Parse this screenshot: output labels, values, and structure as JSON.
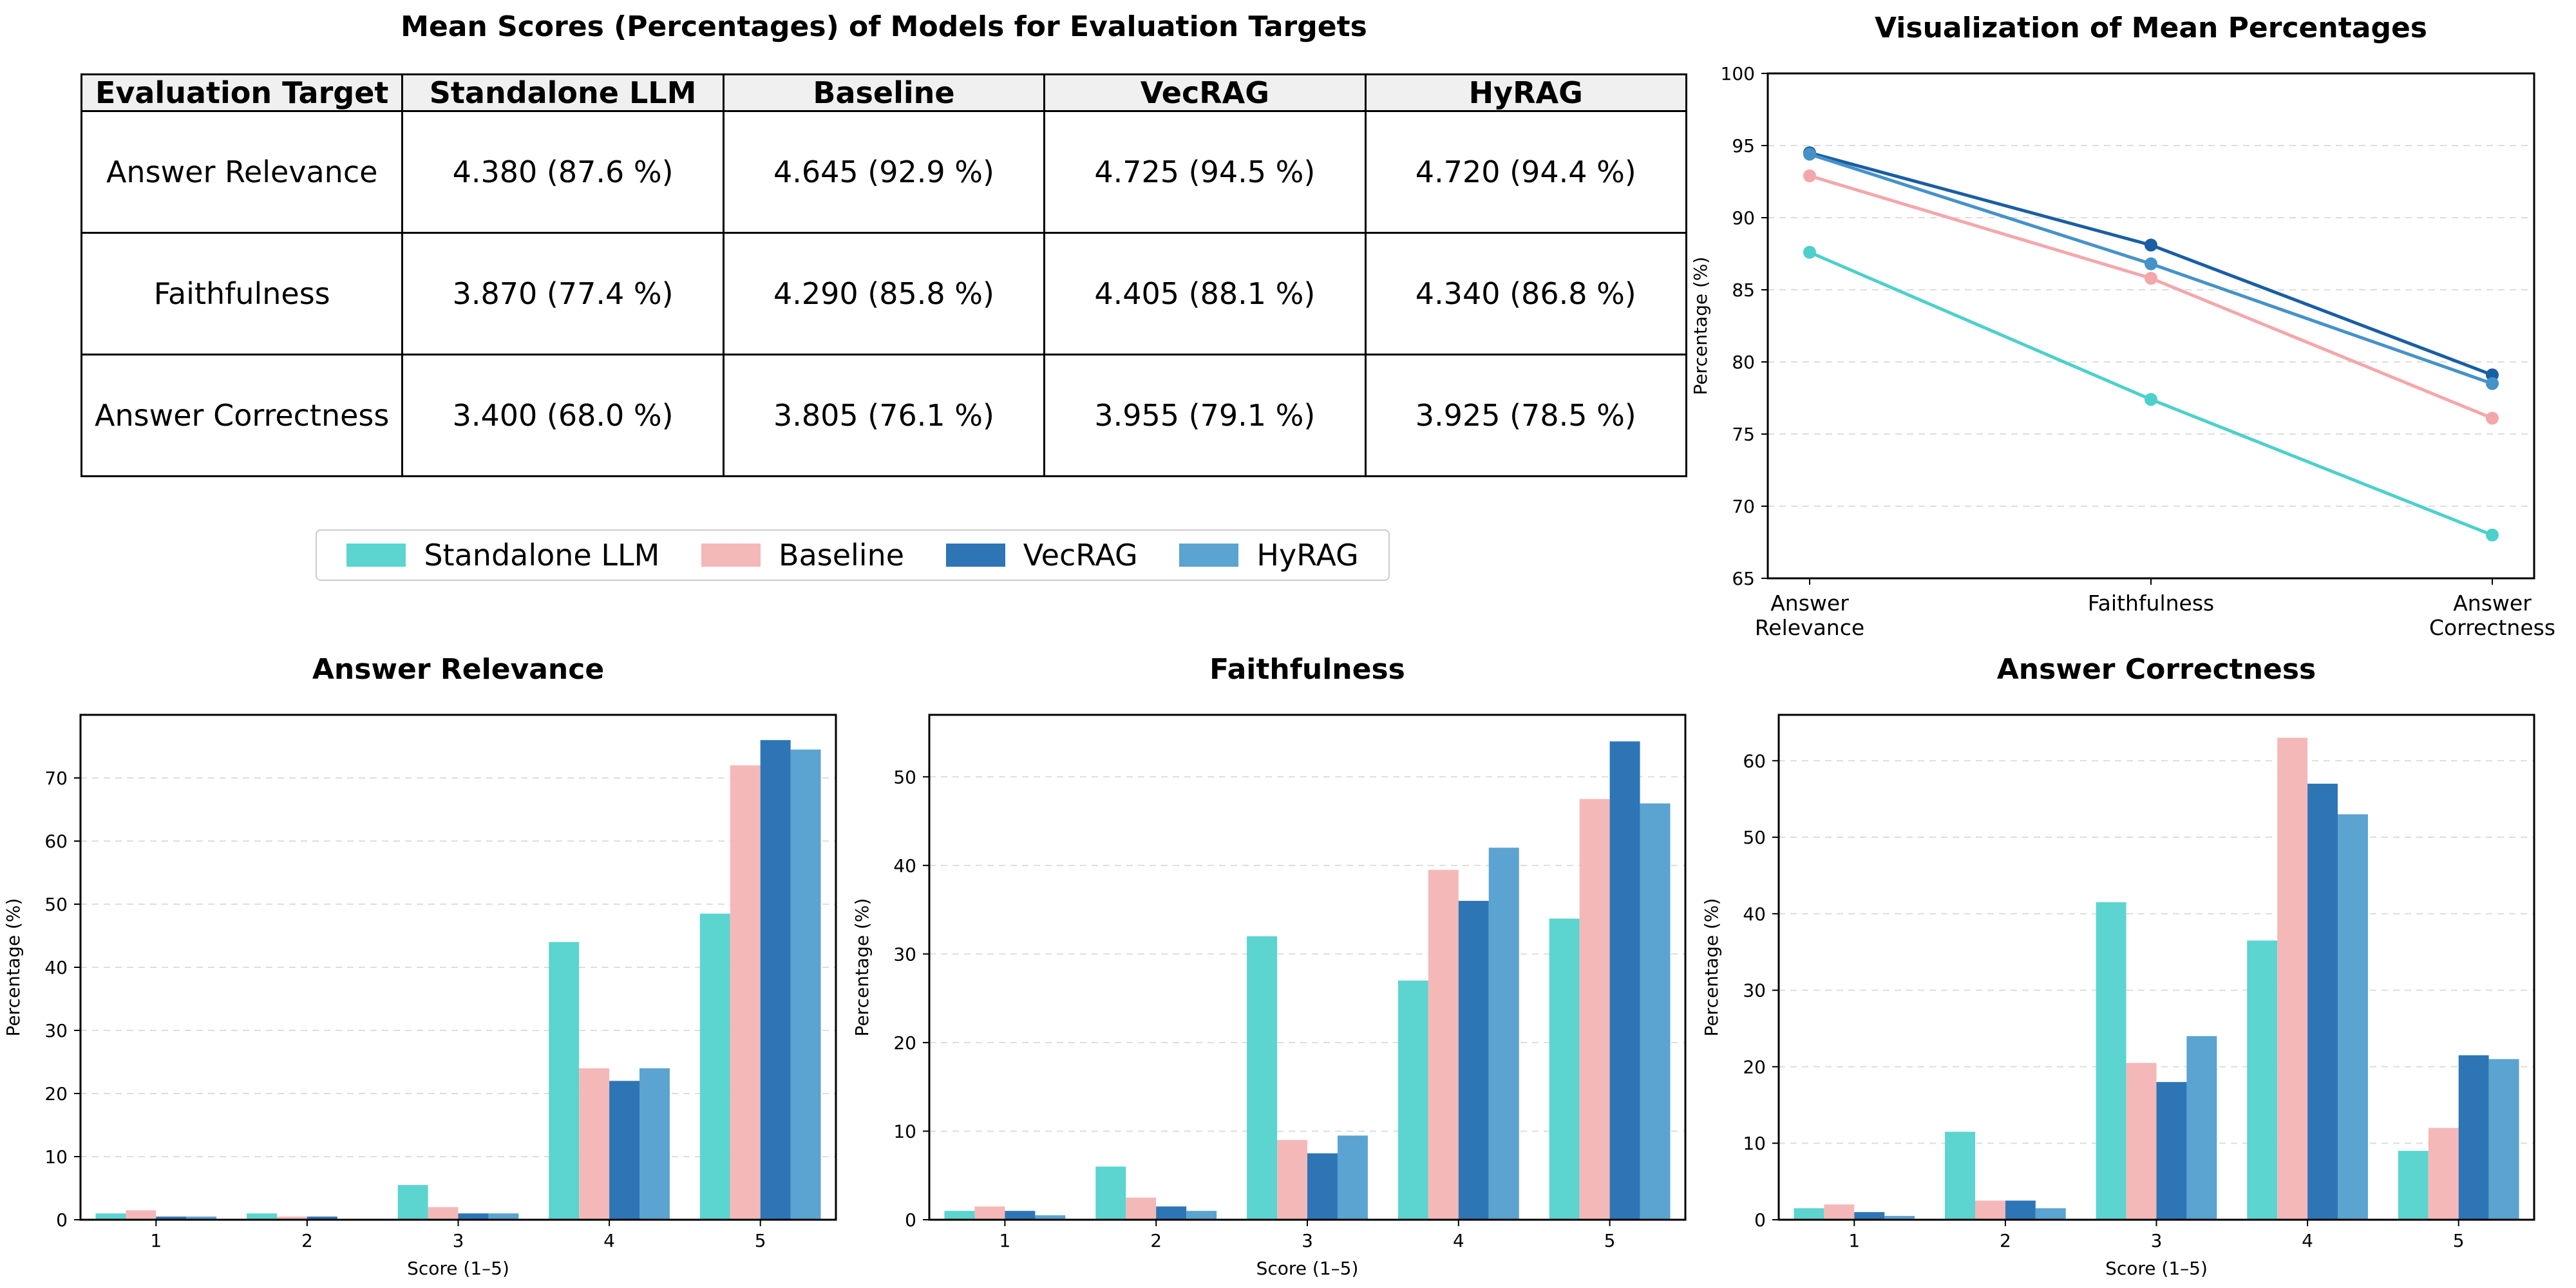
{
  "table": {
    "title": "Mean Scores (Percentages) of Models for Evaluation Targets",
    "headers": [
      "Evaluation Target",
      "Standalone LLM",
      "Baseline",
      "VecRAG",
      "HyRAG"
    ],
    "rows": [
      [
        "Answer Relevance",
        "4.380 (87.6 %)",
        "4.645 (92.9 %)",
        "4.725 (94.5 %)",
        "4.720 (94.4 %)"
      ],
      [
        "Faithfulness",
        "3.870 (77.4 %)",
        "4.290 (85.8 %)",
        "4.405 (88.1 %)",
        "4.340 (86.8 %)"
      ],
      [
        "Answer Correctness",
        "3.400 (68.0 %)",
        "3.805 (76.1 %)",
        "3.955 (79.1 %)",
        "3.925 (78.5 %)"
      ]
    ]
  },
  "legend": [
    {
      "label": "Standalone LLM",
      "color": "#5cd4d0"
    },
    {
      "label": "Baseline",
      "color": "#f5b8b8"
    },
    {
      "label": "VecRAG",
      "color": "#2e75b6"
    },
    {
      "label": "HyRAG",
      "color": "#5ba3d0"
    }
  ],
  "chart_data": [
    {
      "type": "line",
      "title": "Visualization of Mean Percentages",
      "ylabel": "Percentage (%)",
      "xlabel": "",
      "categories": [
        "Answer\nRelevance",
        "Faithfulness",
        "Answer\nCorrectness"
      ],
      "ylim": [
        65,
        100
      ],
      "yticks": [
        65,
        70,
        75,
        80,
        85,
        90,
        95,
        100
      ],
      "grid": "y",
      "series": [
        {
          "name": "Standalone LLM",
          "color": "#4dd0cb",
          "values": [
            87.6,
            77.4,
            68.0
          ]
        },
        {
          "name": "Baseline",
          "color": "#f4a7ab",
          "values": [
            92.9,
            85.8,
            76.1
          ]
        },
        {
          "name": "VecRAG",
          "color": "#1a5ea3",
          "values": [
            94.5,
            88.1,
            79.1
          ]
        },
        {
          "name": "HyRAG",
          "color": "#4592c9",
          "values": [
            94.4,
            86.8,
            78.5
          ]
        }
      ]
    },
    {
      "type": "bar",
      "title": "Answer Relevance",
      "xlabel": "Score (1–5)",
      "ylabel": "Percentage (%)",
      "categories": [
        "1",
        "2",
        "3",
        "4",
        "5"
      ],
      "ylim": [
        0,
        80
      ],
      "yticks": [
        0,
        10,
        20,
        30,
        40,
        50,
        60,
        70
      ],
      "grid": "y",
      "series": [
        {
          "name": "Standalone LLM",
          "color": "#5cd4d0",
          "values": [
            1.0,
            1.0,
            5.5,
            44.0,
            48.5
          ]
        },
        {
          "name": "Baseline",
          "color": "#f5b8b8",
          "values": [
            1.5,
            0.5,
            2.0,
            24.0,
            72.0
          ]
        },
        {
          "name": "VecRAG",
          "color": "#2e75b6",
          "values": [
            0.5,
            0.5,
            1.0,
            22.0,
            76.0
          ]
        },
        {
          "name": "HyRAG",
          "color": "#5ba3d0",
          "values": [
            0.5,
            0.0,
            1.0,
            24.0,
            74.5
          ]
        }
      ]
    },
    {
      "type": "bar",
      "title": "Faithfulness",
      "xlabel": "Score (1–5)",
      "ylabel": "Percentage (%)",
      "categories": [
        "1",
        "2",
        "3",
        "4",
        "5"
      ],
      "ylim": [
        0,
        57
      ],
      "yticks": [
        0,
        10,
        20,
        30,
        40,
        50
      ],
      "grid": "y",
      "series": [
        {
          "name": "Standalone LLM",
          "color": "#5cd4d0",
          "values": [
            1.0,
            6.0,
            32.0,
            27.0,
            34.0
          ]
        },
        {
          "name": "Baseline",
          "color": "#f5b8b8",
          "values": [
            1.5,
            2.5,
            9.0,
            39.5,
            47.5
          ]
        },
        {
          "name": "VecRAG",
          "color": "#2e75b6",
          "values": [
            1.0,
            1.5,
            7.5,
            36.0,
            54.0
          ]
        },
        {
          "name": "HyRAG",
          "color": "#5ba3d0",
          "values": [
            0.5,
            1.0,
            9.5,
            42.0,
            47.0
          ]
        }
      ]
    },
    {
      "type": "bar",
      "title": "Answer Correctness",
      "xlabel": "Score (1–5)",
      "ylabel": "Percentage (%)",
      "categories": [
        "1",
        "2",
        "3",
        "4",
        "5"
      ],
      "ylim": [
        0,
        66
      ],
      "yticks": [
        0,
        10,
        20,
        30,
        40,
        50,
        60
      ],
      "grid": "y",
      "series": [
        {
          "name": "Standalone LLM",
          "color": "#5cd4d0",
          "values": [
            1.5,
            11.5,
            41.5,
            36.5,
            9.0
          ]
        },
        {
          "name": "Baseline",
          "color": "#f5b8b8",
          "values": [
            2.0,
            2.5,
            20.5,
            63.0,
            12.0
          ]
        },
        {
          "name": "VecRAG",
          "color": "#2e75b6",
          "values": [
            1.0,
            2.5,
            18.0,
            57.0,
            21.5
          ]
        },
        {
          "name": "HyRAG",
          "color": "#5ba3d0",
          "values": [
            0.5,
            1.5,
            24.0,
            53.0,
            21.0
          ]
        }
      ]
    }
  ]
}
